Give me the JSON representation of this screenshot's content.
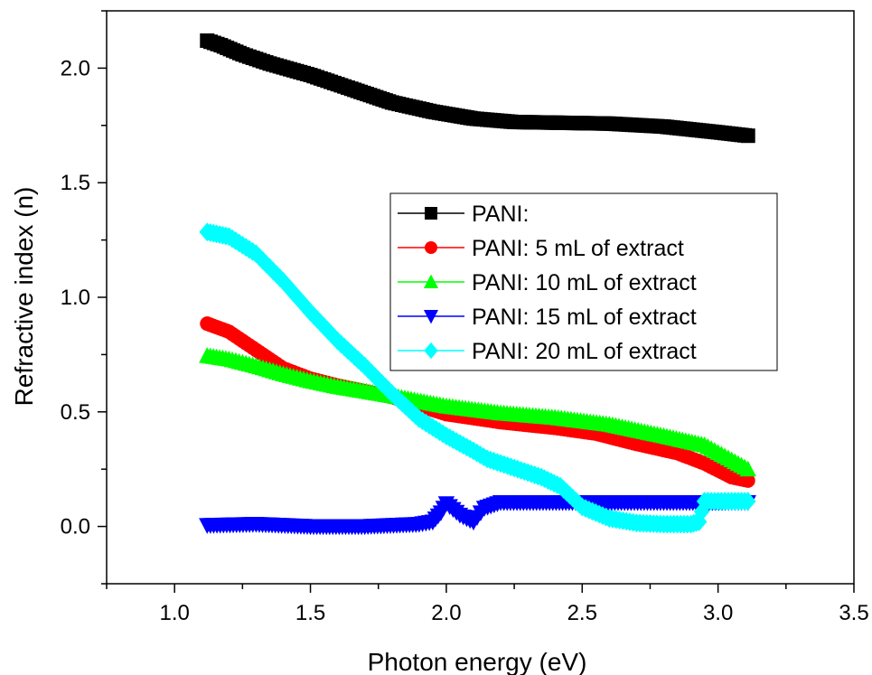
{
  "chart_data": {
    "type": "scatter",
    "xlabel": "Photon energy (eV)",
    "ylabel": "Refractive index (n)",
    "xlim": [
      0.75,
      3.5
    ],
    "ylim": [
      -0.25,
      2.25
    ],
    "xticks": [
      {
        "value": 1.0,
        "label": "1.0"
      },
      {
        "value": 1.5,
        "label": "1.5"
      },
      {
        "value": 2.0,
        "label": "2.0"
      },
      {
        "value": 2.5,
        "label": "2.5"
      },
      {
        "value": 3.0,
        "label": "3.0"
      },
      {
        "value": 3.5,
        "label": "3.5"
      }
    ],
    "yticks": [
      {
        "value": 0.0,
        "label": "0.0"
      },
      {
        "value": 0.5,
        "label": "0.5"
      },
      {
        "value": 1.0,
        "label": "1.0"
      },
      {
        "value": 1.5,
        "label": "1.5"
      },
      {
        "value": 2.0,
        "label": "2.0"
      }
    ],
    "legend_position": "center-right",
    "series": [
      {
        "name": "PANI:",
        "color": "#000000",
        "marker": "square",
        "points": [
          [
            1.12,
            2.12
          ],
          [
            1.17,
            2.1
          ],
          [
            1.25,
            2.06
          ],
          [
            1.35,
            2.02
          ],
          [
            1.5,
            1.97
          ],
          [
            1.65,
            1.91
          ],
          [
            1.8,
            1.85
          ],
          [
            1.95,
            1.81
          ],
          [
            2.1,
            1.78
          ],
          [
            2.25,
            1.765
          ],
          [
            2.4,
            1.762
          ],
          [
            2.6,
            1.758
          ],
          [
            2.8,
            1.745
          ],
          [
            3.0,
            1.72
          ],
          [
            3.11,
            1.705
          ]
        ]
      },
      {
        "name": "PANI: 5 mL of extract",
        "color": "#ff0000",
        "marker": "circle",
        "points": [
          [
            1.12,
            0.885
          ],
          [
            1.2,
            0.85
          ],
          [
            1.3,
            0.77
          ],
          [
            1.4,
            0.69
          ],
          [
            1.5,
            0.645
          ],
          [
            1.6,
            0.615
          ],
          [
            1.8,
            0.565
          ],
          [
            2.0,
            0.49
          ],
          [
            2.2,
            0.455
          ],
          [
            2.4,
            0.43
          ],
          [
            2.55,
            0.405
          ],
          [
            2.7,
            0.36
          ],
          [
            2.85,
            0.32
          ],
          [
            2.95,
            0.275
          ],
          [
            3.05,
            0.215
          ],
          [
            3.11,
            0.2
          ]
        ]
      },
      {
        "name": "PANI: 10 mL of extract",
        "color": "#00ff00",
        "marker": "triangle-up",
        "points": [
          [
            1.12,
            0.745
          ],
          [
            1.2,
            0.73
          ],
          [
            1.3,
            0.7
          ],
          [
            1.4,
            0.665
          ],
          [
            1.5,
            0.635
          ],
          [
            1.6,
            0.61
          ],
          [
            1.8,
            0.57
          ],
          [
            2.0,
            0.525
          ],
          [
            2.2,
            0.495
          ],
          [
            2.4,
            0.475
          ],
          [
            2.6,
            0.445
          ],
          [
            2.8,
            0.395
          ],
          [
            2.95,
            0.355
          ],
          [
            3.05,
            0.29
          ],
          [
            3.11,
            0.25
          ]
        ]
      },
      {
        "name": "PANI: 15 mL of extract",
        "color": "#0000ff",
        "marker": "triangle-down",
        "points": [
          [
            1.12,
            0.005
          ],
          [
            1.3,
            0.01
          ],
          [
            1.5,
            0.0
          ],
          [
            1.7,
            0.0
          ],
          [
            1.9,
            0.01
          ],
          [
            1.95,
            0.02
          ],
          [
            1.98,
            0.06
          ],
          [
            2.0,
            0.1
          ],
          [
            2.05,
            0.05
          ],
          [
            2.1,
            0.02
          ],
          [
            2.14,
            0.08
          ],
          [
            2.2,
            0.105
          ],
          [
            2.5,
            0.105
          ],
          [
            2.8,
            0.105
          ],
          [
            3.11,
            0.105
          ]
        ]
      },
      {
        "name": "PANI: 20 mL of extract",
        "color": "#00ffff",
        "marker": "diamond",
        "points": [
          [
            1.12,
            1.285
          ],
          [
            1.2,
            1.265
          ],
          [
            1.3,
            1.19
          ],
          [
            1.4,
            1.07
          ],
          [
            1.5,
            0.935
          ],
          [
            1.6,
            0.81
          ],
          [
            1.7,
            0.7
          ],
          [
            1.8,
            0.58
          ],
          [
            1.9,
            0.47
          ],
          [
            2.0,
            0.395
          ],
          [
            2.1,
            0.33
          ],
          [
            2.15,
            0.295
          ],
          [
            2.25,
            0.255
          ],
          [
            2.35,
            0.215
          ],
          [
            2.42,
            0.175
          ],
          [
            2.5,
            0.085
          ],
          [
            2.6,
            0.035
          ],
          [
            2.7,
            0.015
          ],
          [
            2.8,
            0.01
          ],
          [
            2.9,
            0.01
          ],
          [
            2.93,
            0.02
          ],
          [
            2.95,
            0.11
          ],
          [
            3.05,
            0.11
          ],
          [
            3.11,
            0.11
          ]
        ]
      }
    ]
  }
}
